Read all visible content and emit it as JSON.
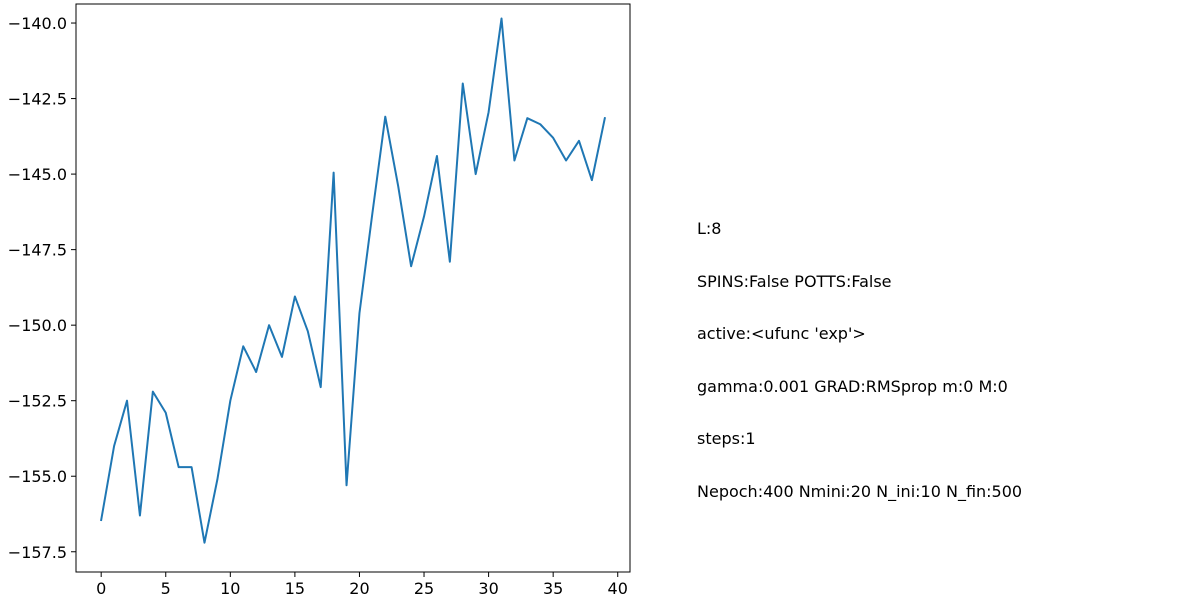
{
  "chart_data": {
    "type": "line",
    "x": [
      0,
      1,
      2,
      3,
      4,
      5,
      6,
      7,
      8,
      9,
      10,
      11,
      12,
      13,
      14,
      15,
      16,
      17,
      18,
      19,
      20,
      21,
      22,
      23,
      24,
      25,
      26,
      27,
      28,
      29,
      30,
      31,
      32,
      33,
      34,
      35,
      36,
      37,
      38,
      39
    ],
    "series": [
      {
        "values": [
          -156.45,
          -154.0,
          -152.5,
          -156.3,
          -152.2,
          -152.9,
          -154.7,
          -154.7,
          -157.2,
          -155.1,
          -152.5,
          -150.7,
          -151.55,
          -150.0,
          -151.05,
          -149.05,
          -150.2,
          -152.05,
          -144.95,
          -155.3,
          -149.6,
          -146.3,
          -143.1,
          -145.4,
          -148.05,
          -146.4,
          -144.4,
          -147.9,
          -142.0,
          -145.0,
          -142.95,
          -139.85,
          -144.55,
          -143.15,
          -143.35,
          -143.8,
          -144.55,
          -143.9,
          -145.2,
          -143.15
        ],
        "color": "#1f77b4"
      }
    ],
    "xlim": [
      -1.95,
      40.95
    ],
    "ylim": [
      -158.17,
      -139.37
    ],
    "xticks": [
      0,
      5,
      10,
      15,
      20,
      25,
      30,
      35,
      40
    ],
    "xtick_labels": [
      "0",
      "5",
      "10",
      "15",
      "20",
      "25",
      "30",
      "35",
      "40"
    ],
    "yticks": [
      -140.0,
      -142.5,
      -145.0,
      -147.5,
      -150.0,
      -152.5,
      -155.0,
      -157.5
    ],
    "ytick_labels": [
      "−140.0",
      "−142.5",
      "−145.0",
      "−147.5",
      "−150.0",
      "−152.5",
      "−155.0",
      "−157.5"
    ],
    "title": "",
    "xlabel": "",
    "ylabel": "",
    "grid": false,
    "annotations": [
      "L:8",
      "SPINS:False POTTS:False",
      "active:<ufunc 'exp'>",
      "gamma:0.001 GRAD:RMSprop m:0 M:0",
      "steps:1",
      "Nepoch:400 Nmini:20 N_ini:10 N_fin:500"
    ]
  }
}
